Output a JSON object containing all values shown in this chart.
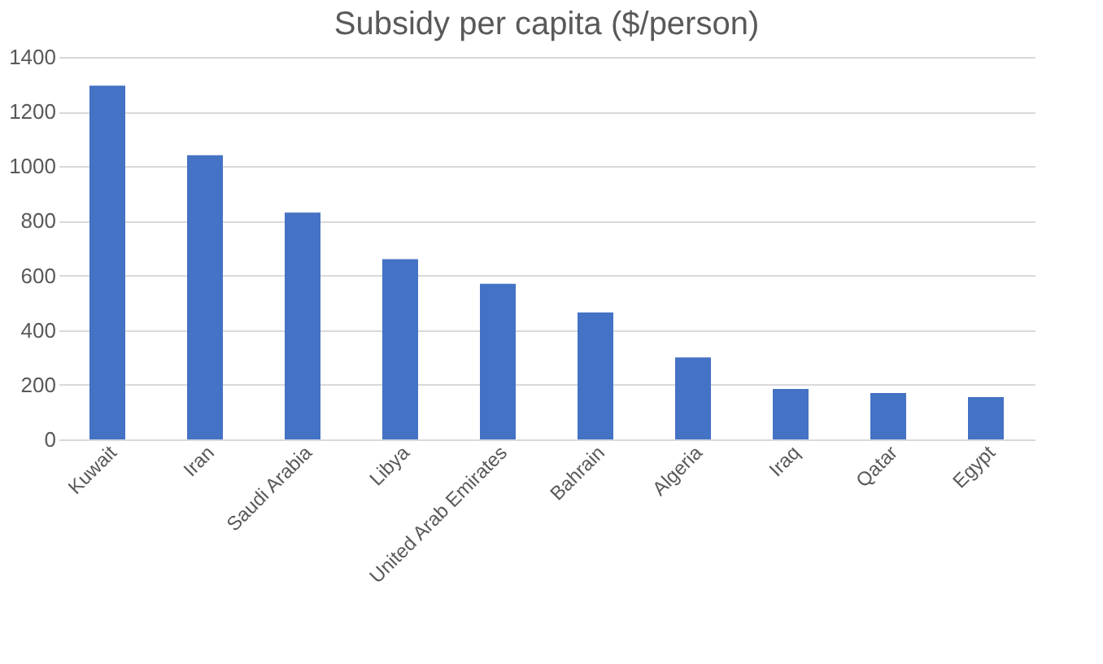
{
  "chart_data": {
    "type": "bar",
    "title": "Subsidy per capita ($/person)",
    "categories": [
      "Kuwait",
      "Iran",
      "Saudi Arabia",
      "Libya",
      "United Arab Emirates",
      "Bahrain",
      "Algeria",
      "Iraq",
      "Qatar",
      "Egypt"
    ],
    "values": [
      1295,
      1040,
      830,
      660,
      570,
      465,
      300,
      185,
      170,
      155
    ],
    "color": "#4472c4",
    "ylim": [
      0,
      1400
    ],
    "yticks": [
      0,
      200,
      400,
      600,
      800,
      1000,
      1200,
      1400
    ],
    "grid": "y"
  }
}
